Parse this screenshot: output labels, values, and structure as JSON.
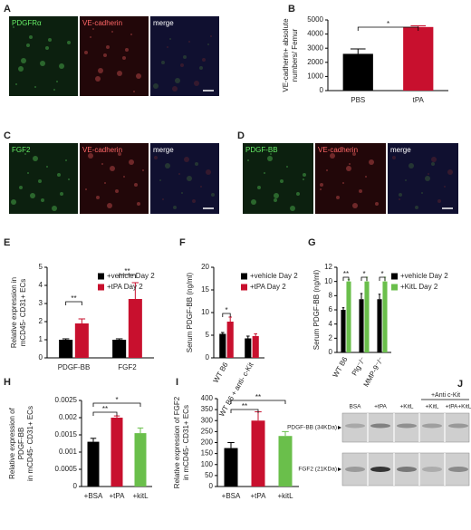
{
  "images": [
    {
      "panel_label": "A",
      "labels": [
        "PDGFRα",
        "VE-cadherin",
        "merge"
      ]
    },
    {
      "panel_label": "C",
      "labels": [
        "FGF2",
        "VE-cadherin",
        "merge"
      ]
    },
    {
      "panel_label": "D",
      "labels": [
        "PDGF-BB",
        "VE-cadherin",
        "merge"
      ]
    }
  ],
  "blot": {
    "panel_label": "J",
    "group_label": "+Anti c-Kit",
    "lanes": [
      "BSA",
      "+tPA",
      "+KitL",
      "+KitL",
      "+tPA+KitL"
    ],
    "rows": [
      "PDGF-BB (34KDa)",
      "FGF2 (21KDa)"
    ]
  },
  "chart_data": [
    {
      "type": "bar",
      "panel_label": "B",
      "ylabel": [
        "VE-cadherin+ absolute",
        "numbers/ Femur"
      ],
      "categories": [
        "PBS",
        "tPA"
      ],
      "values": [
        2600,
        4500
      ],
      "errors": [
        350,
        80
      ],
      "colors": [
        "#000000",
        "#c8102e"
      ],
      "ylim": [
        0,
        5000
      ],
      "yticks": [
        0,
        1000,
        2000,
        3000,
        4000,
        5000
      ],
      "annotations": [
        "*"
      ]
    },
    {
      "type": "bar",
      "panel_label": "E",
      "ylabel": [
        "Relative expression in",
        "mCD45- CD31+ ECs"
      ],
      "categories": [
        "PDGF-BB",
        "FGF2"
      ],
      "series": [
        {
          "name": "+vehicle Day 2",
          "color": "#000000",
          "values": [
            1,
            1
          ],
          "errors": [
            0.05,
            0.05
          ]
        },
        {
          "name": "+tPA Day 2",
          "color": "#c8102e",
          "values": [
            1.9,
            3.25
          ],
          "errors": [
            0.25,
            0.9
          ]
        }
      ],
      "ylim": [
        0,
        5
      ],
      "yticks": [
        0,
        1,
        2,
        3,
        4,
        5
      ],
      "annotations": [
        "**",
        "**"
      ]
    },
    {
      "type": "bar",
      "panel_label": "F",
      "ylabel": [
        "Serum PDGF-BB (ng/ml)"
      ],
      "categories": [
        "WT B6",
        "WT B6 + anti- c-Kit"
      ],
      "series": [
        {
          "name": "+vehicle Day 2",
          "color": "#000000",
          "values": [
            5.3,
            4.3
          ],
          "errors": [
            0.3,
            0.5
          ]
        },
        {
          "name": "+tPA Day 2",
          "color": "#c8102e",
          "values": [
            8,
            4.8
          ],
          "errors": [
            1,
            0.5
          ]
        }
      ],
      "ylim": [
        0,
        20
      ],
      "yticks": [
        0,
        5,
        10,
        15,
        20
      ],
      "annotations": [
        "*"
      ]
    },
    {
      "type": "bar",
      "panel_label": "G",
      "ylabel": [
        "Serum PDGF-BB (ng/ml)"
      ],
      "categories": [
        "WT B6",
        "Plg⁻/⁻",
        "MMP-9⁻/⁻"
      ],
      "series": [
        {
          "name": "+vehicle Day 2",
          "color": "#000000",
          "values": [
            6,
            7.5,
            7.5
          ],
          "errors": [
            0.3,
            0.8,
            0.7
          ]
        },
        {
          "name": "+KitL Day 2",
          "color": "#6abf4b",
          "values": [
            10,
            10,
            10
          ],
          "errors": [
            0.3,
            0.6,
            0.6
          ]
        }
      ],
      "ylim": [
        0,
        12
      ],
      "yticks": [
        0,
        2,
        4,
        6,
        8,
        10,
        12
      ],
      "annotations": [
        "**",
        "*",
        "*"
      ]
    },
    {
      "type": "bar",
      "panel_label": "H",
      "ylabel": [
        "Relative expression of",
        "PDGF-BB",
        "in mCD45- CD31+ ECs"
      ],
      "categories": [
        "+BSA",
        "+tPA",
        "+kitL"
      ],
      "values": [
        0.0013,
        0.002,
        0.00155
      ],
      "errors": [
        0.0001,
        5e-05,
        0.00015
      ],
      "colors": [
        "#000000",
        "#c8102e",
        "#6abf4b"
      ],
      "ylim": [
        0,
        0.0025
      ],
      "yticks": [
        0,
        0.0005,
        0.001,
        0.0015,
        0.002,
        0.0025
      ],
      "annotations": [
        "**",
        "*"
      ]
    },
    {
      "type": "bar",
      "panel_label": "I",
      "ylabel": [
        "Relative expression of FGF2",
        "in mCD45- CD31+ ECs"
      ],
      "categories": [
        "+BSA",
        "+tPA",
        "+kitL"
      ],
      "values": [
        175,
        300,
        230
      ],
      "errors": [
        25,
        40,
        20
      ],
      "colors": [
        "#000000",
        "#c8102e",
        "#6abf4b"
      ],
      "ylim": [
        0,
        400
      ],
      "yticks": [
        0,
        50,
        100,
        150,
        200,
        250,
        300,
        350,
        400
      ],
      "annotations": [
        "**",
        "**"
      ]
    }
  ]
}
